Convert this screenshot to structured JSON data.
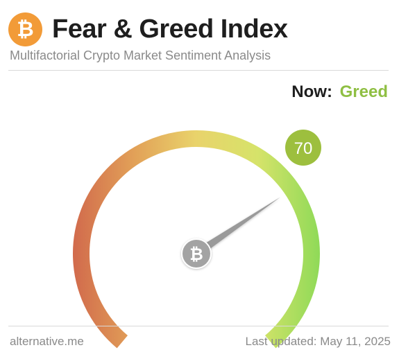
{
  "header": {
    "logo_glyph": "₿",
    "title": "Fear & Greed Index",
    "subtitle": "Multifactorial Crypto Market Sentiment Analysis"
  },
  "status": {
    "now_label": "Now:",
    "now_value": "Greed",
    "now_color": "#8fbf43"
  },
  "gauge": {
    "value": 70,
    "value_label": "70",
    "min": 0,
    "max": 100,
    "badge_color": "#9dbf3e",
    "center_glyph": "₿",
    "gradient_colors": [
      "#d16a4c",
      "#e2a158",
      "#e9d36b",
      "#d6e36a",
      "#90da58"
    ]
  },
  "footer": {
    "source": "alternative.me",
    "updated": "Last updated: May 11, 2025"
  }
}
